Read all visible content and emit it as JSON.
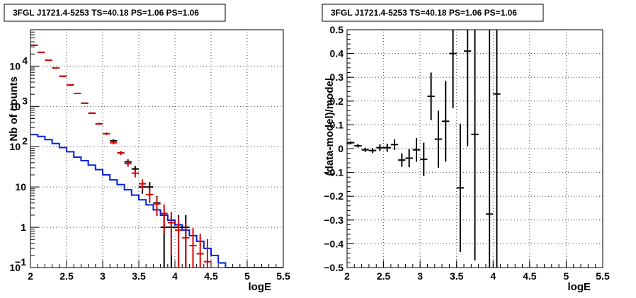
{
  "chart_data": [
    {
      "type": "line",
      "title": "3FGL J1721.4-5253 TS=40.18 PS=1.06 PS=1.06",
      "xlabel": "logE",
      "ylabel": "Nb of counts",
      "xlim": [
        2,
        5.5
      ],
      "ylim": [
        0.1,
        80000
      ],
      "yscale": "log",
      "grid": true,
      "x_ticks": [
        "2",
        "2.5",
        "3",
        "3.5",
        "4",
        "4.5",
        "5",
        "5.5"
      ],
      "y_ticks": [
        {
          "value": 0.1,
          "label": "10",
          "sup": "−1"
        },
        {
          "value": 1,
          "label": "1",
          "sup": ""
        },
        {
          "value": 10,
          "label": "10",
          "sup": ""
        },
        {
          "value": 100,
          "label": "10",
          "sup": "2"
        },
        {
          "value": 1000,
          "label": "10",
          "sup": "3"
        },
        {
          "value": 10000,
          "label": "10",
          "sup": "4"
        }
      ],
      "bin_edges": [
        2.0,
        2.1,
        2.2,
        2.3,
        2.4,
        2.5,
        2.6,
        2.7,
        2.8,
        2.9,
        3.0,
        3.1,
        3.2,
        3.3,
        3.4,
        3.5,
        3.6,
        3.7,
        3.8,
        3.9,
        4.0,
        4.1,
        4.2,
        4.3,
        4.4,
        4.5,
        4.6,
        4.7,
        4.8,
        4.9,
        5.0,
        5.1,
        5.2,
        5.3,
        5.4,
        5.5
      ],
      "series": [
        {
          "role": "model-component",
          "color": "#0022dd",
          "style": "step",
          "values": [
            200,
            180,
            150,
            120,
            95,
            75,
            55,
            45,
            35,
            27,
            20,
            15,
            11.5,
            8.5,
            6.3,
            4.8,
            3.6,
            2.7,
            2.0,
            1.5,
            1.15,
            0.85,
            0.62,
            0.45,
            0.3,
            0.2,
            0.13,
            0.1,
            0.1,
            0.1,
            0.1,
            0.1,
            0.1,
            0.1,
            0.1
          ]
        },
        {
          "role": "data",
          "color": "#000000",
          "style": "errorbar",
          "x": [
            2.05,
            2.15,
            2.25,
            2.35,
            2.45,
            2.55,
            2.65,
            2.75,
            2.85,
            2.95,
            3.05,
            3.15,
            3.25,
            3.35,
            3.45,
            3.55,
            3.65,
            3.75,
            3.85,
            3.95,
            4.05,
            4.15
          ],
          "y": [
            33000,
            22000,
            14000,
            9000,
            5600,
            3400,
            2100,
            1200,
            680,
            370,
            210,
            140,
            70,
            42,
            28,
            10,
            10,
            4,
            1,
            1,
            1,
            1
          ],
          "y_err": [
            180,
            150,
            120,
            95,
            75,
            58,
            46,
            35,
            26,
            19,
            14,
            12,
            8,
            6.5,
            5.3,
            3.2,
            3.2,
            2.0,
            1.0,
            1.0,
            1.0,
            1.0
          ]
        },
        {
          "role": "model-total",
          "color": "#dd0000",
          "style": "errorbar",
          "x": [
            2.05,
            2.15,
            2.25,
            2.35,
            2.45,
            2.55,
            2.65,
            2.75,
            2.85,
            2.95,
            3.05,
            3.15,
            3.25,
            3.35,
            3.45,
            3.55,
            3.65,
            3.75,
            3.85,
            3.95,
            4.05,
            4.15,
            4.25,
            4.35,
            4.45
          ],
          "y": [
            33000,
            22000,
            14000,
            9000,
            5600,
            3400,
            2100,
            1200,
            680,
            370,
            210,
            125,
            70,
            38,
            22,
            12,
            6.5,
            3.8,
            2.2,
            1.3,
            0.85,
            0.55,
            0.35,
            0.22,
            0.14
          ],
          "y_err": [
            180,
            150,
            120,
            95,
            75,
            58,
            46,
            35,
            26,
            19,
            14,
            11,
            8.4,
            6.2,
            4.7,
            3.5,
            2.5,
            1.9,
            1.5,
            1.1,
            0.9,
            0.74,
            0.6,
            0.47,
            0.37
          ]
        }
      ]
    },
    {
      "type": "scatter",
      "title": "3FGL J1721.4-5253 TS=40.18 PS=1.06 PS=1.06",
      "xlabel": "logE",
      "ylabel": "(data-model)/model",
      "xlim": [
        2,
        5.5
      ],
      "ylim": [
        -0.5,
        0.5
      ],
      "grid": true,
      "x_ticks": [
        "2",
        "2.5",
        "3",
        "3.5",
        "4",
        "4.5",
        "5",
        "5.5"
      ],
      "y_ticks": [
        "−0.5",
        "−0.4",
        "−0.3",
        "−0.2",
        "−0.1",
        "0",
        "0.1",
        "0.2",
        "0.3",
        "0.4",
        "0.5"
      ],
      "series": [
        {
          "color": "#000000",
          "style": "errorbar",
          "x": [
            2.05,
            2.15,
            2.25,
            2.35,
            2.45,
            2.55,
            2.65,
            2.75,
            2.85,
            2.95,
            3.05,
            3.15,
            3.25,
            3.35,
            3.45,
            3.55,
            3.65,
            3.75,
            3.95,
            4.05
          ],
          "y": [
            0.025,
            0.012,
            -0.005,
            -0.008,
            0.004,
            0.004,
            0.017,
            -0.048,
            -0.04,
            -0.005,
            -0.045,
            0.22,
            0.04,
            0.115,
            0.4,
            -0.165,
            0.41,
            0.06,
            -0.275,
            0.23
          ],
          "y_err": [
            0.006,
            0.007,
            0.009,
            0.011,
            0.014,
            0.017,
            0.022,
            0.028,
            0.038,
            0.05,
            0.07,
            0.1,
            0.12,
            0.17,
            0.23,
            0.27,
            0.4,
            0.53,
            0.8,
            0.8
          ],
          "x_err": 0.05
        }
      ]
    }
  ]
}
